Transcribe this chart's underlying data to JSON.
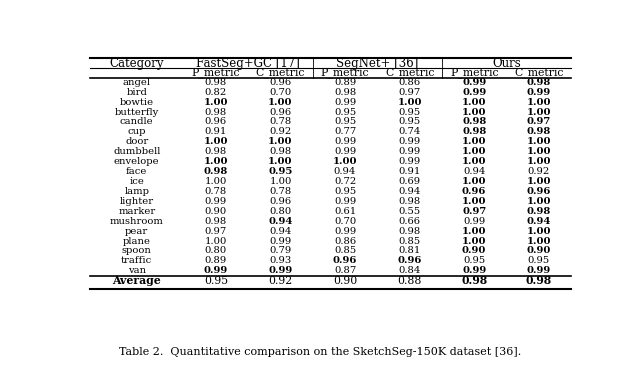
{
  "title": "Table 2.  Quantitative comparison on the SketchSeg-150K dataset [36].",
  "categories": [
    "angel",
    "bird",
    "bowtie",
    "butterfly",
    "candle",
    "cup",
    "door",
    "dumbbell",
    "envelope",
    "face",
    "ice",
    "lamp",
    "lighter",
    "marker",
    "mushroom",
    "pear",
    "plane",
    "spoon",
    "traffic",
    "van",
    "Average"
  ],
  "data": [
    [
      0.98,
      0.96,
      0.89,
      0.86,
      0.99,
      0.98
    ],
    [
      0.82,
      0.7,
      0.98,
      0.97,
      0.99,
      0.99
    ],
    [
      1.0,
      1.0,
      0.99,
      1.0,
      1.0,
      1.0
    ],
    [
      0.98,
      0.96,
      0.95,
      0.95,
      1.0,
      1.0
    ],
    [
      0.96,
      0.78,
      0.95,
      0.95,
      0.98,
      0.97
    ],
    [
      0.91,
      0.92,
      0.77,
      0.74,
      0.98,
      0.98
    ],
    [
      1.0,
      1.0,
      0.99,
      0.99,
      1.0,
      1.0
    ],
    [
      0.98,
      0.98,
      0.99,
      0.99,
      1.0,
      1.0
    ],
    [
      1.0,
      1.0,
      1.0,
      0.99,
      1.0,
      1.0
    ],
    [
      0.98,
      0.95,
      0.94,
      0.91,
      0.94,
      0.92
    ],
    [
      1.0,
      1.0,
      0.72,
      0.69,
      1.0,
      1.0
    ],
    [
      0.78,
      0.78,
      0.95,
      0.94,
      0.96,
      0.96
    ],
    [
      0.99,
      0.96,
      0.99,
      0.98,
      1.0,
      1.0
    ],
    [
      0.9,
      0.8,
      0.61,
      0.55,
      0.97,
      0.98
    ],
    [
      0.98,
      0.94,
      0.7,
      0.66,
      0.99,
      0.94
    ],
    [
      0.97,
      0.94,
      0.99,
      0.98,
      1.0,
      1.0
    ],
    [
      1.0,
      0.99,
      0.86,
      0.85,
      1.0,
      1.0
    ],
    [
      0.8,
      0.79,
      0.85,
      0.81,
      0.9,
      0.9
    ],
    [
      0.89,
      0.93,
      0.96,
      0.96,
      0.95,
      0.95
    ],
    [
      0.99,
      0.99,
      0.87,
      0.84,
      0.99,
      0.99
    ],
    [
      0.95,
      0.92,
      0.9,
      0.88,
      0.98,
      0.98
    ]
  ],
  "bold": [
    [
      false,
      false,
      false,
      false,
      true,
      true
    ],
    [
      false,
      false,
      false,
      false,
      true,
      true
    ],
    [
      true,
      true,
      false,
      true,
      true,
      true
    ],
    [
      false,
      false,
      false,
      false,
      true,
      true
    ],
    [
      false,
      false,
      false,
      false,
      true,
      true
    ],
    [
      false,
      false,
      false,
      false,
      true,
      true
    ],
    [
      true,
      true,
      false,
      false,
      true,
      true
    ],
    [
      false,
      false,
      false,
      false,
      true,
      true
    ],
    [
      true,
      true,
      true,
      false,
      true,
      true
    ],
    [
      true,
      true,
      false,
      false,
      false,
      false
    ],
    [
      false,
      false,
      false,
      false,
      true,
      true
    ],
    [
      false,
      false,
      false,
      false,
      true,
      true
    ],
    [
      false,
      false,
      false,
      false,
      true,
      true
    ],
    [
      false,
      false,
      false,
      false,
      true,
      true
    ],
    [
      false,
      true,
      false,
      false,
      false,
      true
    ],
    [
      false,
      false,
      false,
      false,
      true,
      true
    ],
    [
      false,
      false,
      false,
      false,
      true,
      true
    ],
    [
      false,
      false,
      false,
      false,
      true,
      true
    ],
    [
      false,
      false,
      true,
      true,
      false,
      false
    ],
    [
      true,
      true,
      false,
      false,
      true,
      true
    ],
    [
      false,
      false,
      false,
      false,
      true,
      true
    ]
  ],
  "group_headers": [
    "FastSeg+GC [17]",
    "SegNet+ [36]",
    "Ours"
  ],
  "subheaders": [
    "P_metric",
    "C_metric",
    "P_metric",
    "C_metric",
    "P_metric",
    "C_metric"
  ],
  "col_header": "Category",
  "figsize": [
    6.4,
    3.66
  ],
  "dpi": 100
}
